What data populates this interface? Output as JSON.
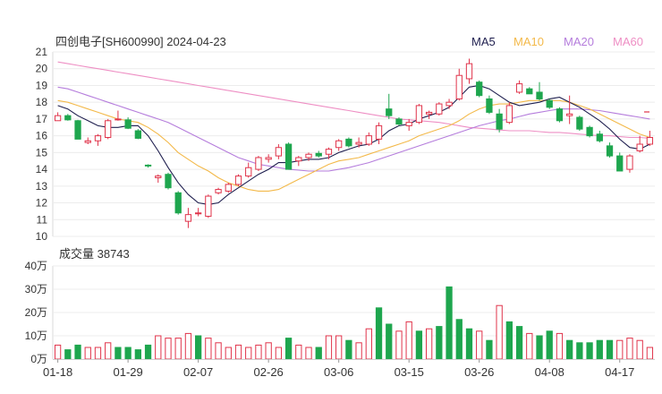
{
  "chart_data": [
    {
      "type": "candlestick",
      "title": "四创电子[SH600990] 2024-04-23",
      "ylim": [
        10,
        21
      ],
      "y_ticks": [
        "10",
        "11",
        "12",
        "13",
        "14",
        "15",
        "16",
        "17",
        "18",
        "19",
        "20",
        "21"
      ],
      "legend": [
        {
          "name": "MA5",
          "color": "#1f1f4f"
        },
        {
          "name": "MA10",
          "color": "#f3b94a"
        },
        {
          "name": "MA20",
          "color": "#b57ddc"
        },
        {
          "name": "MA60",
          "color": "#ee8fc4"
        }
      ],
      "up_color": "#e0334a",
      "down_color": "#1ea64e",
      "candles": [
        [
          16.9,
          17.4,
          16.9,
          17.2
        ],
        [
          17.2,
          17.3,
          16.9,
          16.95
        ],
        [
          16.9,
          16.95,
          15.8,
          15.8
        ],
        [
          15.6,
          15.9,
          15.5,
          15.7
        ],
        [
          15.7,
          16.1,
          15.4,
          16.0
        ],
        [
          15.9,
          17.0,
          15.8,
          16.9
        ],
        [
          16.95,
          17.5,
          16.9,
          17.0
        ],
        [
          16.95,
          17.1,
          16.4,
          16.45
        ],
        [
          16.3,
          16.4,
          15.8,
          15.85
        ],
        [
          14.25,
          14.3,
          14.1,
          14.2
        ],
        [
          13.5,
          13.7,
          13.2,
          13.6
        ],
        [
          13.7,
          13.8,
          12.8,
          12.9
        ],
        [
          12.6,
          12.7,
          11.3,
          11.4
        ],
        [
          10.9,
          11.7,
          10.5,
          11.3
        ],
        [
          11.4,
          11.7,
          11.2,
          11.4
        ],
        [
          11.2,
          12.5,
          11.1,
          12.4
        ],
        [
          12.6,
          12.9,
          12.5,
          12.8
        ],
        [
          12.7,
          13.2,
          12.6,
          13.1
        ],
        [
          13.1,
          13.7,
          13.0,
          13.6
        ],
        [
          13.6,
          14.4,
          13.5,
          14.1
        ],
        [
          14.0,
          14.8,
          13.9,
          14.7
        ],
        [
          14.6,
          14.9,
          14.4,
          14.7
        ],
        [
          14.8,
          15.5,
          14.6,
          15.3
        ],
        [
          15.5,
          15.6,
          14.0,
          14.0
        ],
        [
          14.5,
          14.8,
          14.2,
          14.7
        ],
        [
          14.7,
          15.0,
          14.5,
          14.9
        ],
        [
          14.95,
          15.1,
          14.7,
          14.8
        ],
        [
          14.9,
          15.3,
          14.6,
          15.2
        ],
        [
          15.3,
          15.8,
          15.1,
          15.7
        ],
        [
          15.8,
          15.9,
          15.3,
          15.4
        ],
        [
          15.5,
          15.9,
          15.3,
          15.6
        ],
        [
          15.5,
          16.2,
          15.4,
          16.0
        ],
        [
          15.8,
          16.8,
          15.5,
          16.6
        ],
        [
          17.6,
          18.5,
          17.0,
          17.2
        ],
        [
          17.0,
          17.1,
          16.6,
          16.7
        ],
        [
          16.6,
          17.0,
          16.3,
          16.8
        ],
        [
          16.8,
          17.9,
          16.7,
          17.8
        ],
        [
          17.3,
          17.5,
          17.0,
          17.4
        ],
        [
          17.3,
          18.0,
          17.2,
          17.9
        ],
        [
          17.8,
          18.2,
          17.6,
          18.0
        ],
        [
          18.2,
          20.0,
          18.1,
          19.6
        ],
        [
          19.4,
          20.6,
          19.1,
          20.3
        ],
        [
          19.2,
          19.3,
          18.3,
          18.4
        ],
        [
          18.2,
          18.4,
          17.3,
          17.4
        ],
        [
          17.3,
          17.6,
          16.2,
          16.4
        ],
        [
          16.8,
          18.0,
          16.7,
          17.8
        ],
        [
          18.6,
          19.3,
          18.5,
          19.1
        ],
        [
          18.8,
          18.9,
          18.5,
          18.5
        ],
        [
          18.6,
          19.2,
          18.1,
          18.2
        ],
        [
          18.1,
          18.2,
          17.6,
          17.7
        ],
        [
          17.6,
          17.7,
          16.8,
          16.9
        ],
        [
          17.2,
          18.4,
          16.7,
          17.3
        ],
        [
          17.1,
          17.2,
          16.3,
          16.4
        ],
        [
          16.5,
          16.6,
          15.9,
          16.0
        ],
        [
          16.1,
          16.3,
          15.6,
          15.7
        ],
        [
          15.4,
          15.6,
          14.7,
          14.8
        ],
        [
          14.8,
          15.0,
          13.9,
          13.9
        ],
        [
          14.0,
          14.9,
          13.8,
          14.8
        ],
        [
          15.1,
          16.0,
          15.0,
          15.5
        ],
        [
          15.5,
          16.3,
          15.4,
          15.9
        ]
      ],
      "ma5": [
        17.8,
        17.6,
        17.2,
        16.9,
        16.6,
        16.5,
        16.5,
        16.6,
        16.6,
        16.0,
        15.1,
        14.1,
        13.2,
        12.5,
        12.0,
        11.9,
        12.0,
        12.5,
        12.9,
        13.3,
        13.7,
        14.0,
        14.4,
        14.4,
        14.5,
        14.6,
        14.6,
        14.7,
        15.0,
        15.2,
        15.4,
        15.5,
        15.8,
        16.3,
        16.6,
        16.7,
        17.0,
        17.2,
        17.4,
        17.7,
        18.3,
        18.9,
        19.0,
        18.8,
        18.4,
        18.0,
        17.8,
        17.9,
        18.0,
        18.2,
        18.3,
        18.0,
        17.7,
        17.3,
        16.9,
        16.4,
        15.8,
        15.3,
        15.2,
        15.5
      ],
      "ma10": [
        18.1,
        18.0,
        17.8,
        17.6,
        17.4,
        17.2,
        17.0,
        16.9,
        16.8,
        16.5,
        16.1,
        15.6,
        15.0,
        14.6,
        14.2,
        13.9,
        13.5,
        13.2,
        13.0,
        12.8,
        12.7,
        12.7,
        12.8,
        13.1,
        13.4,
        13.7,
        14.0,
        14.3,
        14.5,
        14.6,
        14.7,
        14.9,
        15.1,
        15.3,
        15.5,
        15.7,
        16.0,
        16.2,
        16.4,
        16.6,
        16.9,
        17.3,
        17.6,
        17.8,
        17.9,
        17.9,
        18.0,
        18.1,
        18.1,
        18.1,
        18.1,
        18.0,
        17.8,
        17.6,
        17.3,
        17.0,
        16.7,
        16.4,
        16.1,
        15.9
      ],
      "ma20": [
        18.9,
        18.8,
        18.6,
        18.4,
        18.2,
        18.0,
        17.8,
        17.6,
        17.4,
        17.2,
        17.0,
        16.8,
        16.5,
        16.2,
        15.9,
        15.6,
        15.3,
        15.0,
        14.7,
        14.5,
        14.3,
        14.2,
        14.1,
        14.0,
        13.95,
        13.9,
        13.9,
        13.9,
        14.0,
        14.1,
        14.25,
        14.4,
        14.6,
        14.8,
        15.0,
        15.2,
        15.4,
        15.6,
        15.8,
        16.0,
        16.2,
        16.4,
        16.6,
        16.75,
        16.9,
        17.0,
        17.15,
        17.3,
        17.4,
        17.5,
        17.6,
        17.6,
        17.6,
        17.55,
        17.5,
        17.4,
        17.3,
        17.2,
        17.1,
        17.0
      ],
      "ma60": [
        20.4,
        20.3,
        20.2,
        20.1,
        20.0,
        19.9,
        19.8,
        19.7,
        19.6,
        19.5,
        19.4,
        19.3,
        19.2,
        19.1,
        19.0,
        18.9,
        18.8,
        18.7,
        18.6,
        18.5,
        18.4,
        18.3,
        18.2,
        18.1,
        18.0,
        17.9,
        17.8,
        17.7,
        17.6,
        17.5,
        17.4,
        17.3,
        17.2,
        17.1,
        17.0,
        16.95,
        16.9,
        16.85,
        16.8,
        16.7,
        16.6,
        16.5,
        16.45,
        16.4,
        16.35,
        16.3,
        16.3,
        16.3,
        16.25,
        16.2,
        16.2,
        16.15,
        16.1,
        16.05,
        16.0,
        16.0,
        15.95,
        15.9,
        15.9,
        15.85
      ],
      "x_ticks": [
        {
          "label": "01-18",
          "index": 0
        },
        {
          "label": "01-29",
          "index": 7
        },
        {
          "label": "02-07",
          "index": 14
        },
        {
          "label": "02-26",
          "index": 21
        },
        {
          "label": "03-06",
          "index": 28
        },
        {
          "label": "03-15",
          "index": 35
        },
        {
          "label": "03-26",
          "index": 42
        },
        {
          "label": "04-08",
          "index": 49
        },
        {
          "label": "04-17",
          "index": 56
        }
      ]
    },
    {
      "type": "bar",
      "title": "成交量 38743",
      "ylim": [
        0,
        40
      ],
      "y_ticks": [
        "0万",
        "10万",
        "20万",
        "30万",
        "40万"
      ],
      "values": [
        6,
        4,
        6,
        5,
        5,
        7,
        5,
        5,
        4,
        6,
        10,
        9,
        9,
        11,
        10,
        9,
        7,
        5,
        6,
        5,
        6,
        7,
        5,
        9,
        6,
        5,
        5,
        10,
        10,
        8,
        7,
        13,
        22,
        15,
        12,
        16,
        12,
        13,
        14,
        31,
        17,
        13,
        12,
        8,
        23,
        16,
        14,
        11,
        10,
        12,
        11,
        8,
        7,
        7,
        8,
        8,
        8,
        9,
        8,
        5
      ],
      "colors": [
        "u",
        "d",
        "d",
        "u",
        "u",
        "u",
        "d",
        "d",
        "d",
        "d",
        "u",
        "u",
        "u",
        "u",
        "d",
        "u",
        "u",
        "u",
        "u",
        "u",
        "u",
        "u",
        "u",
        "d",
        "u",
        "u",
        "d",
        "u",
        "u",
        "d",
        "u",
        "u",
        "d",
        "d",
        "u",
        "u",
        "d",
        "u",
        "d",
        "d",
        "d",
        "d",
        "u",
        "d",
        "u",
        "d",
        "d",
        "u",
        "d",
        "d",
        "u",
        "d",
        "d",
        "d",
        "d",
        "d",
        "u",
        "u",
        "u",
        "u"
      ]
    }
  ]
}
